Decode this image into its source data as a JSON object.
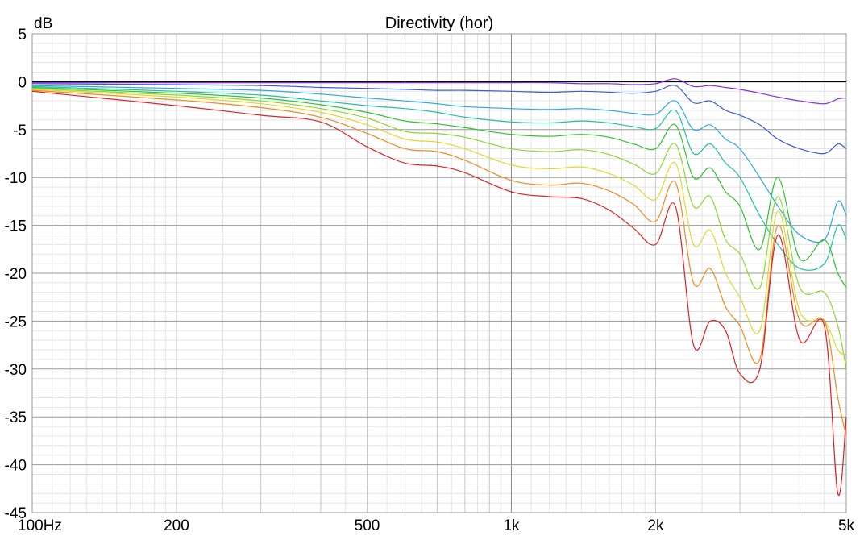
{
  "chart_data": {
    "type": "line",
    "title": "Directivity (hor)",
    "ylabel": "dB",
    "xlabel": "",
    "x_scale": "log",
    "xlim": [
      100,
      5000
    ],
    "ylim": [
      -45,
      5
    ],
    "grid": true,
    "x_tick_labels": [
      {
        "value": 100,
        "label": "100Hz"
      },
      {
        "value": 200,
        "label": "200"
      },
      {
        "value": 500,
        "label": "500"
      },
      {
        "value": 1000,
        "label": "1k"
      },
      {
        "value": 2000,
        "label": "2k"
      },
      {
        "value": 5000,
        "label": "5k"
      }
    ],
    "y_ticks": [
      5,
      0,
      -5,
      -10,
      -15,
      -20,
      -25,
      -30,
      -35,
      -40,
      -45
    ],
    "x": [
      100,
      200,
      300,
      400,
      500,
      600,
      700,
      800,
      1000,
      1200,
      1400,
      1600,
      1800,
      2000,
      2200,
      2400,
      2600,
      2800,
      3000,
      3300,
      3600,
      4000,
      4500,
      4800,
      5000
    ],
    "series": [
      {
        "color": "#000000",
        "values": [
          0,
          0,
          0,
          0,
          0,
          0,
          0,
          0,
          0,
          0,
          0,
          0,
          0,
          0,
          0,
          0,
          0,
          0,
          0,
          0,
          0,
          0,
          0,
          0,
          0
        ]
      },
      {
        "color": "#8a2be2",
        "values": [
          -0.1,
          -0.1,
          -0.1,
          -0.1,
          -0.1,
          -0.1,
          -0.1,
          -0.1,
          -0.1,
          -0.1,
          -0.2,
          -0.2,
          -0.3,
          -0.2,
          0.3,
          -0.5,
          -0.4,
          -0.6,
          -0.8,
          -1.2,
          -1.6,
          -2.0,
          -2.3,
          -1.8,
          -1.7
        ]
      },
      {
        "color": "#3a5cd8",
        "values": [
          -0.2,
          -0.3,
          -0.4,
          -0.6,
          -0.7,
          -0.8,
          -0.9,
          -0.9,
          -1.0,
          -1.1,
          -1.0,
          -1.1,
          -1.2,
          -1.0,
          -0.4,
          -2.2,
          -2.0,
          -3.0,
          -3.5,
          -4.5,
          -6.0,
          -7.0,
          -7.5,
          -6.5,
          -7.0
        ]
      },
      {
        "color": "#2aa8e0",
        "values": [
          -0.4,
          -0.7,
          -0.9,
          -1.3,
          -1.7,
          -2.0,
          -2.3,
          -2.6,
          -2.8,
          -2.9,
          -2.8,
          -3.0,
          -3.3,
          -3.4,
          -2.0,
          -5.0,
          -4.5,
          -6.0,
          -7.0,
          -10.0,
          -13.0,
          -16.0,
          -16.5,
          -12.5,
          -14.0
        ]
      },
      {
        "color": "#20c0a0",
        "values": [
          -0.5,
          -1.0,
          -1.4,
          -2.0,
          -2.5,
          -2.8,
          -3.2,
          -3.7,
          -4.2,
          -4.3,
          -4.1,
          -4.3,
          -4.7,
          -4.9,
          -3.0,
          -7.5,
          -6.5,
          -8.5,
          -10.0,
          -14.0,
          -17.0,
          -19.5,
          -19.0,
          -15.0,
          -16.5
        ]
      },
      {
        "color": "#30c030",
        "values": [
          -0.6,
          -1.2,
          -1.7,
          -2.4,
          -3.2,
          -4.1,
          -4.4,
          -4.8,
          -5.5,
          -5.7,
          -5.5,
          -5.8,
          -6.5,
          -7.0,
          -4.5,
          -10.0,
          -9.0,
          -11.5,
          -13.0,
          -17.5,
          -10.0,
          -18.5,
          -16.5,
          -20.0,
          -21.5
        ]
      },
      {
        "color": "#8ed630",
        "values": [
          -0.7,
          -1.4,
          -2.0,
          -2.8,
          -3.8,
          -5.2,
          -5.4,
          -5.8,
          -7.0,
          -7.3,
          -7.1,
          -7.6,
          -8.6,
          -9.6,
          -6.5,
          -13.0,
          -12.0,
          -16.5,
          -18.0,
          -21.5,
          -12.0,
          -21.5,
          -22.0,
          -25.5,
          -30.0
        ]
      },
      {
        "color": "#e0d830",
        "values": [
          -0.8,
          -1.6,
          -2.3,
          -3.2,
          -4.5,
          -6.0,
          -6.3,
          -7.0,
          -8.7,
          -9.1,
          -8.9,
          -9.6,
          -10.8,
          -12.3,
          -8.5,
          -17.0,
          -15.5,
          -20.0,
          -22.5,
          -26.0,
          -13.5,
          -24.0,
          -25.0,
          -28.0,
          -28.5
        ]
      },
      {
        "color": "#f08a20",
        "values": [
          -0.9,
          -1.9,
          -2.7,
          -3.7,
          -5.4,
          -7.0,
          -7.3,
          -8.2,
          -10.3,
          -10.8,
          -10.6,
          -11.4,
          -12.8,
          -14.6,
          -10.5,
          -21.0,
          -19.5,
          -23.5,
          -25.5,
          -29.0,
          -15.0,
          -25.0,
          -25.0,
          -33.0,
          -37.0
        ]
      },
      {
        "color": "#e02020",
        "values": [
          -1.0,
          -2.5,
          -3.5,
          -4.2,
          -6.8,
          -8.5,
          -8.8,
          -9.5,
          -11.5,
          -12.0,
          -12.2,
          -13.4,
          -15.3,
          -17.0,
          -13.0,
          -27.5,
          -25.0,
          -26.0,
          -30.5,
          -30.0,
          -16.0,
          -27.0,
          -25.5,
          -43.0,
          -35.0
        ]
      }
    ]
  }
}
